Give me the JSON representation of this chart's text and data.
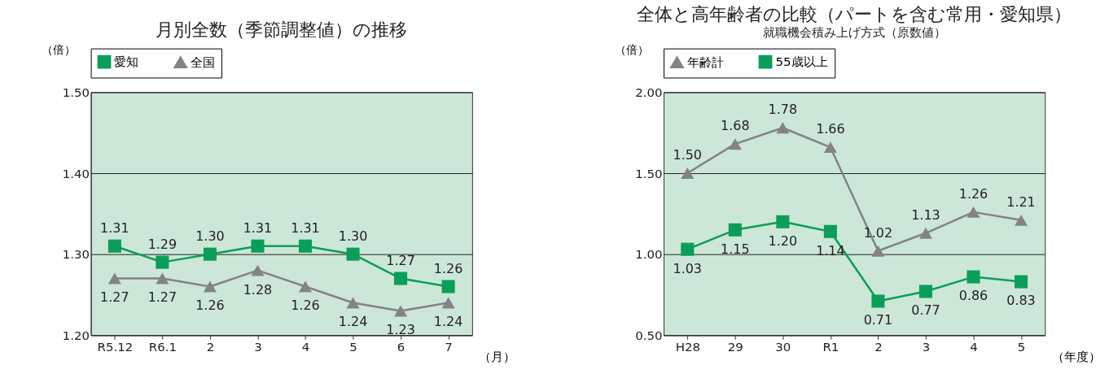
{
  "chart_data": [
    {
      "type": "line",
      "title": "月別全数（季節調整値）の推移",
      "ylabel": "（倍）",
      "xlabel": "（月）",
      "categories": [
        "R5.12",
        "R6.1",
        "2",
        "3",
        "4",
        "5",
        "6",
        "7"
      ],
      "series": [
        {
          "name": "愛知",
          "color": "#0a9e5a",
          "marker": "square",
          "values": [
            1.31,
            1.29,
            1.3,
            1.31,
            1.31,
            1.3,
            1.27,
            1.26
          ],
          "value_labels": [
            "1.31",
            "1.29",
            "1.30",
            "1.31",
            "1.31",
            "1.30",
            "1.27",
            "1.26"
          ]
        },
        {
          "name": "全国",
          "color": "#838383",
          "marker": "triangle",
          "values": [
            1.27,
            1.27,
            1.26,
            1.28,
            1.26,
            1.24,
            1.23,
            1.24
          ],
          "value_labels": [
            "1.27",
            "1.27",
            "1.26",
            "1.28",
            "1.26",
            "1.24",
            "1.23",
            "1.24"
          ]
        }
      ],
      "ylim": [
        1.2,
        1.5
      ],
      "yticks": [
        {
          "value": 1.2,
          "label": "1.20"
        },
        {
          "value": 1.3,
          "label": "1.30"
        },
        {
          "value": 1.4,
          "label": "1.40"
        },
        {
          "value": 1.5,
          "label": "1.50"
        }
      ],
      "grid": "y",
      "legend": "top",
      "line_style": "solid"
    },
    {
      "type": "line",
      "title": "全体と高年齢者の比較（パートを含む常用・愛知県）",
      "subtitle": "就職機会積み上げ方式（原数値）",
      "ylabel": "（倍）",
      "xlabel": "（年度）",
      "categories": [
        "H28",
        "29",
        "30",
        "R1",
        "2",
        "3",
        "4",
        "5"
      ],
      "series": [
        {
          "name": "年齢計",
          "color": "#838383",
          "marker": "triangle",
          "values": [
            1.5,
            1.68,
            1.78,
            1.66,
            1.02,
            1.13,
            1.26,
            1.21
          ],
          "value_labels": [
            "1.50",
            "1.68",
            "1.78",
            "1.66",
            "1.02",
            "1.13",
            "1.26",
            "1.21"
          ]
        },
        {
          "name": "55歳以上",
          "color": "#0a9e5a",
          "marker": "square",
          "values": [
            1.03,
            1.15,
            1.2,
            1.14,
            0.71,
            0.77,
            0.86,
            0.83
          ],
          "value_labels": [
            "1.03",
            "1.15",
            "1.20",
            "1.14",
            "0.71",
            "0.77",
            "0.86",
            "0.83"
          ]
        }
      ],
      "ylim": [
        0.5,
        2.0
      ],
      "yticks": [
        {
          "value": 0.5,
          "label": "0.50"
        },
        {
          "value": 1.0,
          "label": "1.00"
        },
        {
          "value": 1.5,
          "label": "1.50"
        },
        {
          "value": 2.0,
          "label": "2.00"
        }
      ],
      "grid": "y",
      "legend": "top",
      "line_style": "solid"
    }
  ]
}
